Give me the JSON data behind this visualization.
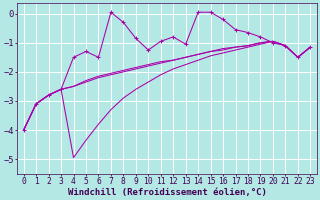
{
  "background_color": "#b3e8e5",
  "grid_color": "#ffffff",
  "line_color": "#aa00aa",
  "xlabel": "Windchill (Refroidissement éolien,°C)",
  "xlabel_fontsize": 6.5,
  "tick_fontsize": 5.8,
  "ylim": [
    -5.5,
    0.35
  ],
  "xlim": [
    -0.5,
    23.5
  ],
  "yticks": [
    0,
    -1,
    -2,
    -3,
    -4,
    -5
  ],
  "xticks": [
    0,
    1,
    2,
    3,
    4,
    5,
    6,
    7,
    8,
    9,
    10,
    11,
    12,
    13,
    14,
    15,
    16,
    17,
    18,
    19,
    20,
    21,
    22,
    23
  ],
  "s1_x": [
    0,
    1,
    2,
    3,
    4,
    5,
    6,
    7,
    8,
    9,
    10,
    11,
    12,
    13,
    14,
    15,
    16,
    17,
    18,
    19,
    20,
    21,
    22,
    23
  ],
  "s1_y": [
    -4.0,
    -3.1,
    -2.8,
    -2.6,
    -1.5,
    -1.3,
    -1.5,
    0.05,
    -0.3,
    -0.85,
    -1.25,
    -0.95,
    -0.8,
    -1.05,
    0.05,
    0.05,
    -0.2,
    -0.55,
    -0.65,
    -0.8,
    -1.0,
    -1.1,
    -1.5,
    -1.15
  ],
  "s2_x": [
    0,
    1,
    2,
    3,
    4,
    5,
    6,
    7,
    8,
    9,
    10,
    11,
    12,
    13,
    14,
    15,
    16,
    17,
    18,
    19,
    20,
    21,
    22,
    23
  ],
  "s2_y": [
    -4.0,
    -3.1,
    -2.8,
    -2.6,
    -4.95,
    -4.35,
    -3.8,
    -3.3,
    -2.9,
    -2.6,
    -2.35,
    -2.1,
    -1.9,
    -1.75,
    -1.6,
    -1.45,
    -1.35,
    -1.25,
    -1.15,
    -1.05,
    -0.95,
    -1.1,
    -1.5,
    -1.15
  ],
  "s3_x": [
    0,
    1,
    2,
    3,
    4,
    5,
    6,
    7,
    8,
    9,
    10,
    11,
    12,
    13,
    14,
    15,
    16,
    17,
    18,
    19,
    20,
    21,
    22,
    23
  ],
  "s3_y": [
    -4.0,
    -3.1,
    -2.8,
    -2.6,
    -2.5,
    -2.3,
    -2.15,
    -2.05,
    -1.95,
    -1.85,
    -1.75,
    -1.65,
    -1.6,
    -1.5,
    -1.4,
    -1.3,
    -1.2,
    -1.15,
    -1.1,
    -1.0,
    -0.95,
    -1.1,
    -1.5,
    -1.15
  ],
  "s4_x": [
    0,
    1,
    2,
    3,
    4,
    5,
    6,
    7,
    8,
    9,
    10,
    11,
    12,
    13,
    14,
    15,
    16,
    17,
    18,
    19,
    20,
    21,
    22,
    23
  ],
  "s4_y": [
    -4.0,
    -3.1,
    -2.8,
    -2.6,
    -2.5,
    -2.35,
    -2.2,
    -2.1,
    -2.0,
    -1.9,
    -1.8,
    -1.7,
    -1.6,
    -1.5,
    -1.4,
    -1.3,
    -1.25,
    -1.15,
    -1.1,
    -1.0,
    -0.95,
    -1.1,
    -1.5,
    -1.15
  ]
}
